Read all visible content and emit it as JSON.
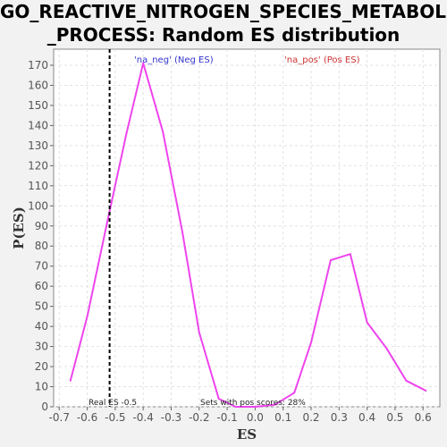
{
  "title_line1": "GO_REACTIVE_NITROGEN_SPECIES_METABOLIC",
  "title_line2": "_PROCESS: Random ES distribution",
  "colors": {
    "series": "#ee44ee",
    "neg_label": "#3333cc",
    "pos_label": "#cc3333",
    "real_es_line": "#000000"
  },
  "chart_data": {
    "type": "line",
    "title": "GO_REACTIVE_NITROGEN_SPECIES_METABOLIC_PROCESS: Random ES distribution",
    "xlabel": "ES",
    "ylabel": "P(ES)",
    "xlim": [
      -0.72,
      0.66
    ],
    "ylim": [
      0,
      178
    ],
    "xticks": [
      -0.7,
      -0.6,
      -0.5,
      -0.4,
      -0.3,
      -0.2,
      -0.1,
      0.0,
      0.1,
      0.2,
      0.3,
      0.4,
      0.5,
      0.6
    ],
    "yticks": [
      0,
      10,
      20,
      30,
      40,
      50,
      60,
      70,
      80,
      90,
      100,
      110,
      120,
      130,
      140,
      150,
      160,
      170
    ],
    "grid": true,
    "series": [
      {
        "x": [
          -0.66,
          -0.6,
          -0.53,
          -0.46,
          -0.4,
          -0.33,
          -0.26,
          -0.2,
          -0.13,
          -0.07,
          0.0,
          0.07,
          0.14,
          0.2,
          0.27,
          0.34,
          0.4,
          0.47,
          0.54,
          0.61
        ],
        "values": [
          13,
          45,
          91,
          136,
          171,
          137,
          87,
          37,
          4,
          0,
          0,
          1,
          7,
          32,
          73,
          76,
          42,
          29,
          13,
          8
        ]
      }
    ],
    "real_es": -0.52,
    "annotations": {
      "neg_label": "'na_neg' (Neg ES)",
      "pos_label": "'na_pos' (Pos ES)",
      "real_es_label": "Real ES -0.5",
      "pos_scores_label": "Sets with pos scores: 28%"
    }
  }
}
